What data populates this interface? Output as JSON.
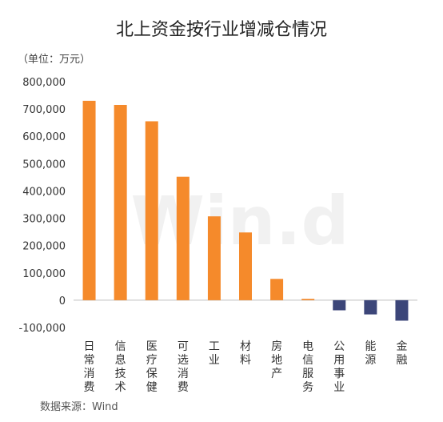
{
  "chart_data": {
    "type": "bar",
    "title": "北上资金按行业增减仓情况",
    "unit_label": "（单位：万元）",
    "categories": [
      "日常消费",
      "信息技术",
      "医疗保健",
      "可选消费",
      "工业",
      "材料",
      "房地产",
      "电信服务",
      "公用事业",
      "能源",
      "金融"
    ],
    "values": [
      730000,
      715000,
      655000,
      452000,
      307000,
      248000,
      78000,
      5000,
      -37000,
      -52000,
      -75000
    ],
    "ylim": [
      -100000,
      800000
    ],
    "yticks": [
      800000,
      700000,
      600000,
      500000,
      400000,
      300000,
      200000,
      100000,
      0,
      -100000
    ],
    "ytick_labels": [
      "800,000",
      "700,000",
      "600,000",
      "500,000",
      "400,000",
      "300,000",
      "200,000",
      "100,000",
      "0",
      "-100,000"
    ],
    "xlabel": "",
    "ylabel": "",
    "grid": false,
    "legend": "none",
    "colors": {
      "positive": "#F58A2B",
      "negative": "#3C4679",
      "axis": "#BFBFBF"
    },
    "source": "数据来源：Wind",
    "watermark": "Win.d"
  }
}
